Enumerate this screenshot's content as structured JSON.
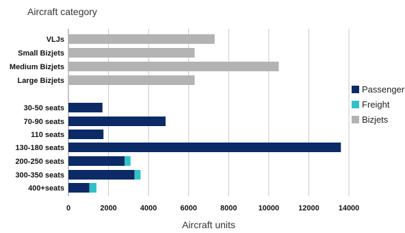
{
  "chart_data": {
    "type": "bar",
    "orientation": "horizontal",
    "stacked": true,
    "ylabel": "Aircraft category",
    "xlabel": "Aircraft units",
    "xlim": [
      0,
      14000
    ],
    "xticks": [
      0,
      2000,
      4000,
      6000,
      8000,
      10000,
      12000,
      14000
    ],
    "tick_labels": [
      "0",
      "2000",
      "4000",
      "6000",
      "8000",
      "10000",
      "12000",
      "14000"
    ],
    "grid": "vertical",
    "legend_position": "right",
    "categories": [
      "VLJs",
      "Small Bizjets",
      "Medium Bizjets",
      "Large Bizjets",
      "30-50 seats",
      "70-90 seats",
      "110 seats",
      "130-180 seats",
      "200-250 seats",
      "300-350 seats",
      "400+seats"
    ],
    "series": [
      {
        "name": "Passenger",
        "color": "#0b2a66",
        "values": [
          0,
          0,
          0,
          0,
          1700,
          4850,
          1750,
          13600,
          2800,
          3300,
          1050
        ]
      },
      {
        "name": "Freight",
        "color": "#33c0c8",
        "values": [
          0,
          0,
          0,
          0,
          0,
          0,
          0,
          0,
          300,
          300,
          350
        ]
      },
      {
        "name": "Bizjets",
        "color": "#b3b3b3",
        "values": [
          7300,
          6300,
          10500,
          6300,
          0,
          0,
          0,
          0,
          0,
          0,
          0
        ]
      }
    ]
  }
}
